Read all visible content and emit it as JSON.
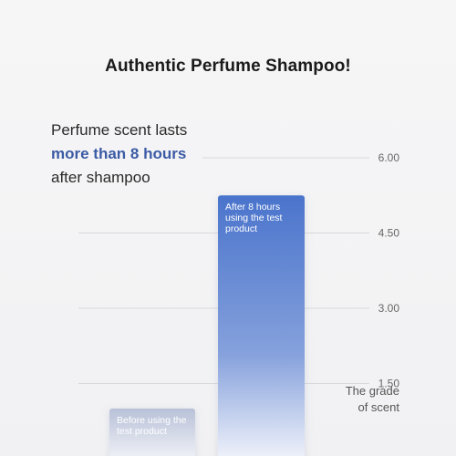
{
  "header": {
    "title": "Authentic Perfume Shampoo!"
  },
  "caption": {
    "line1": "Perfume scent lasts",
    "line2": "more than 8 hours",
    "line3": "after shampoo"
  },
  "axis_caption": {
    "line1": "The grade",
    "line2": "of scent"
  },
  "chart_data": {
    "type": "bar",
    "categories": [
      "Before using the test product",
      "After 8 hours using the test product"
    ],
    "values": [
      1.0,
      5.25
    ],
    "ylim": [
      0,
      6
    ],
    "yticks": [
      "6.00",
      "4.50",
      "3.00",
      "1.50"
    ],
    "ytick_values": [
      6,
      4.5,
      3,
      1.5
    ],
    "grid": true,
    "colors": {
      "before_top": "#b8c1d8",
      "before_bottom": "#f3f4f8",
      "after_top": "#4a74cc",
      "after_bottom": "#f2f4fb",
      "grid": "#d9d9dd",
      "highlight": "#3b5ba5"
    }
  }
}
